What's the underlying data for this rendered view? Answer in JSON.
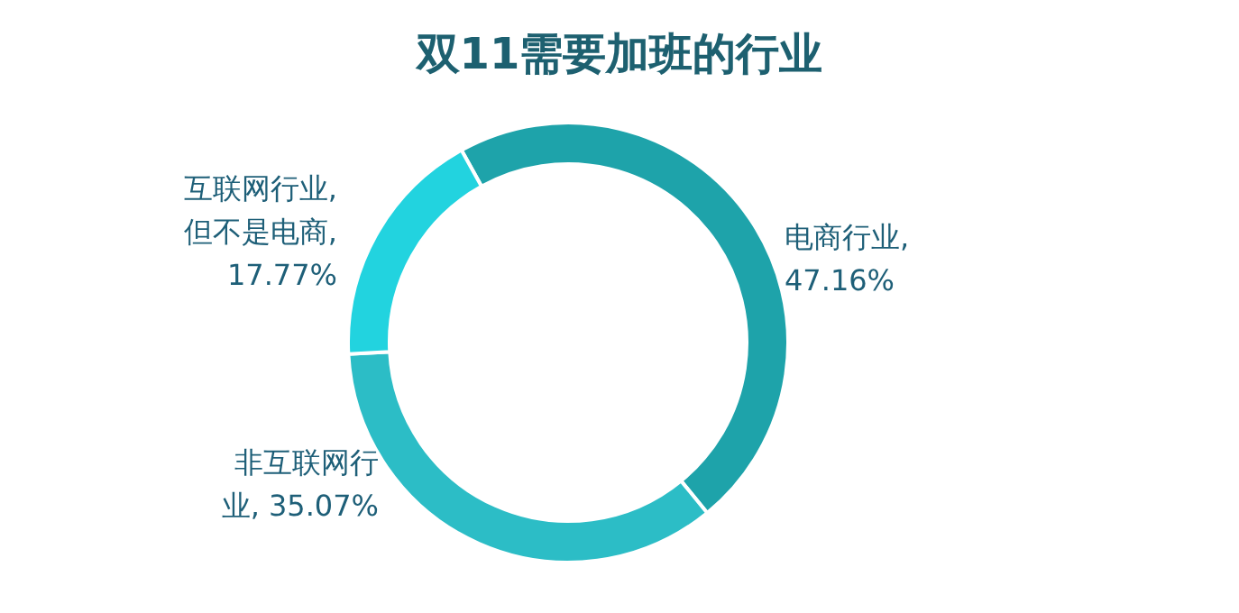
{
  "chart_data": {
    "type": "donut",
    "title": "双11需要加班的行业",
    "categories": [
      "电商行业",
      "非互联网行业",
      "互联网行业, 但不是电商"
    ],
    "values": [
      47.16,
      35.07,
      17.77
    ],
    "value_labels": [
      ", 47.16%",
      ", 35.07%",
      ", 17.77%"
    ],
    "colors": [
      "#1ea3aa",
      "#2cbdc6",
      "#22d3df"
    ]
  }
}
